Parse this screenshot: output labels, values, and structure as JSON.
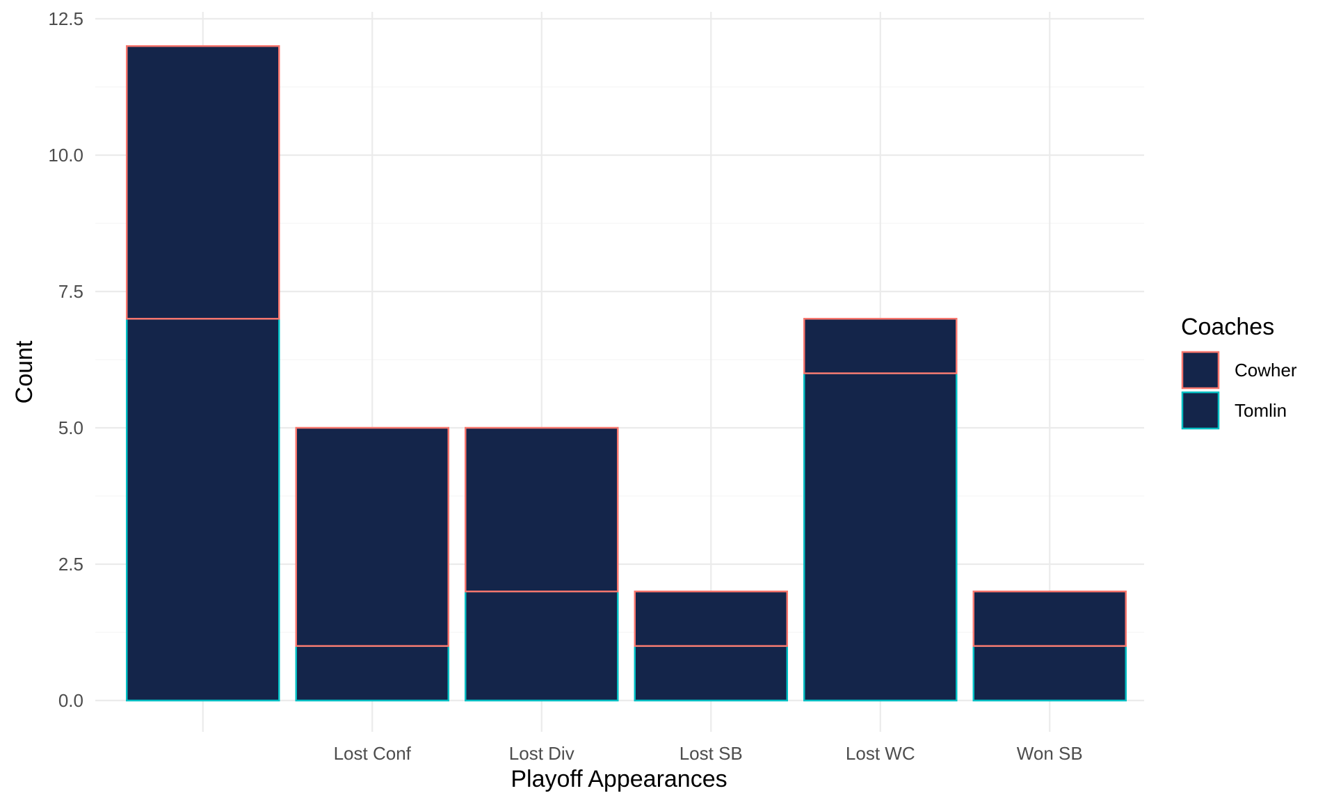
{
  "chart_data": {
    "type": "bar",
    "stacked": true,
    "title": "",
    "xlabel": "Playoff Appearances",
    "ylabel": "Count",
    "categories": [
      "",
      "Lost Conf",
      "Lost Div",
      "Lost SB",
      "Lost WC",
      "Won SB"
    ],
    "series": [
      {
        "name": "Cowher",
        "values": [
          5,
          4,
          3,
          1,
          1,
          1
        ],
        "outline_color": "#f8766d"
      },
      {
        "name": "Tomlin",
        "values": [
          7,
          1,
          2,
          1,
          6,
          1
        ],
        "outline_color": "#00bfc4"
      }
    ],
    "ylim": [
      0,
      12.5
    ],
    "yticks": [
      "0.0",
      "2.5",
      "5.0",
      "7.5",
      "10.0",
      "12.5"
    ],
    "grid": true,
    "legend": {
      "title": "Coaches",
      "placement": "right"
    },
    "bar_fill": "#14254a"
  }
}
